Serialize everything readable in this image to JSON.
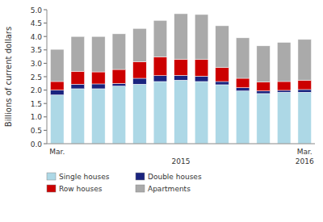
{
  "chart_data": {
    "type": "bar",
    "stacked": true,
    "ylabel": "Billions of current dollars",
    "categories": [
      "Mar.",
      null,
      null,
      null,
      null,
      null,
      null,
      null,
      null,
      null,
      null,
      null,
      "Mar."
    ],
    "annotations": [
      {
        "text": "2015",
        "x": 6
      },
      {
        "text": "2016",
        "x": 12
      }
    ],
    "series": [
      {
        "name": "Single houses",
        "color": "#add8e6",
        "values": [
          1.82,
          2.05,
          2.05,
          2.15,
          2.22,
          2.32,
          2.37,
          2.32,
          2.2,
          1.97,
          1.87,
          1.92,
          1.92
        ]
      },
      {
        "name": "Double houses",
        "color": "#1a237e",
        "values": [
          0.18,
          0.17,
          0.18,
          0.1,
          0.22,
          0.22,
          0.18,
          0.2,
          0.12,
          0.12,
          0.1,
          0.07,
          0.1
        ]
      },
      {
        "name": "Row houses",
        "color": "#cc0000",
        "values": [
          0.32,
          0.48,
          0.45,
          0.52,
          0.62,
          0.7,
          0.6,
          0.62,
          0.52,
          0.35,
          0.33,
          0.33,
          0.35
        ]
      },
      {
        "name": "Apartments",
        "color": "#aaaaaa",
        "values": [
          1.2,
          1.3,
          1.32,
          1.33,
          1.24,
          1.36,
          1.7,
          1.68,
          1.56,
          1.51,
          1.35,
          1.46,
          1.52
        ]
      }
    ],
    "ylim": [
      0.0,
      5.0
    ],
    "yticks": [
      {
        "value": 0.0,
        "label": "0.0"
      },
      0.5,
      {
        "value": 1.0,
        "label": "1.0"
      },
      1.5,
      {
        "value": 2.0,
        "label": "2.0"
      },
      2.5,
      {
        "value": 3.0,
        "label": "3.0"
      },
      3.5,
      {
        "value": 4.0,
        "label": "4.0"
      },
      4.5,
      {
        "value": 5.0,
        "label": "5.0"
      }
    ],
    "legend": "bottom",
    "grid": false
  }
}
